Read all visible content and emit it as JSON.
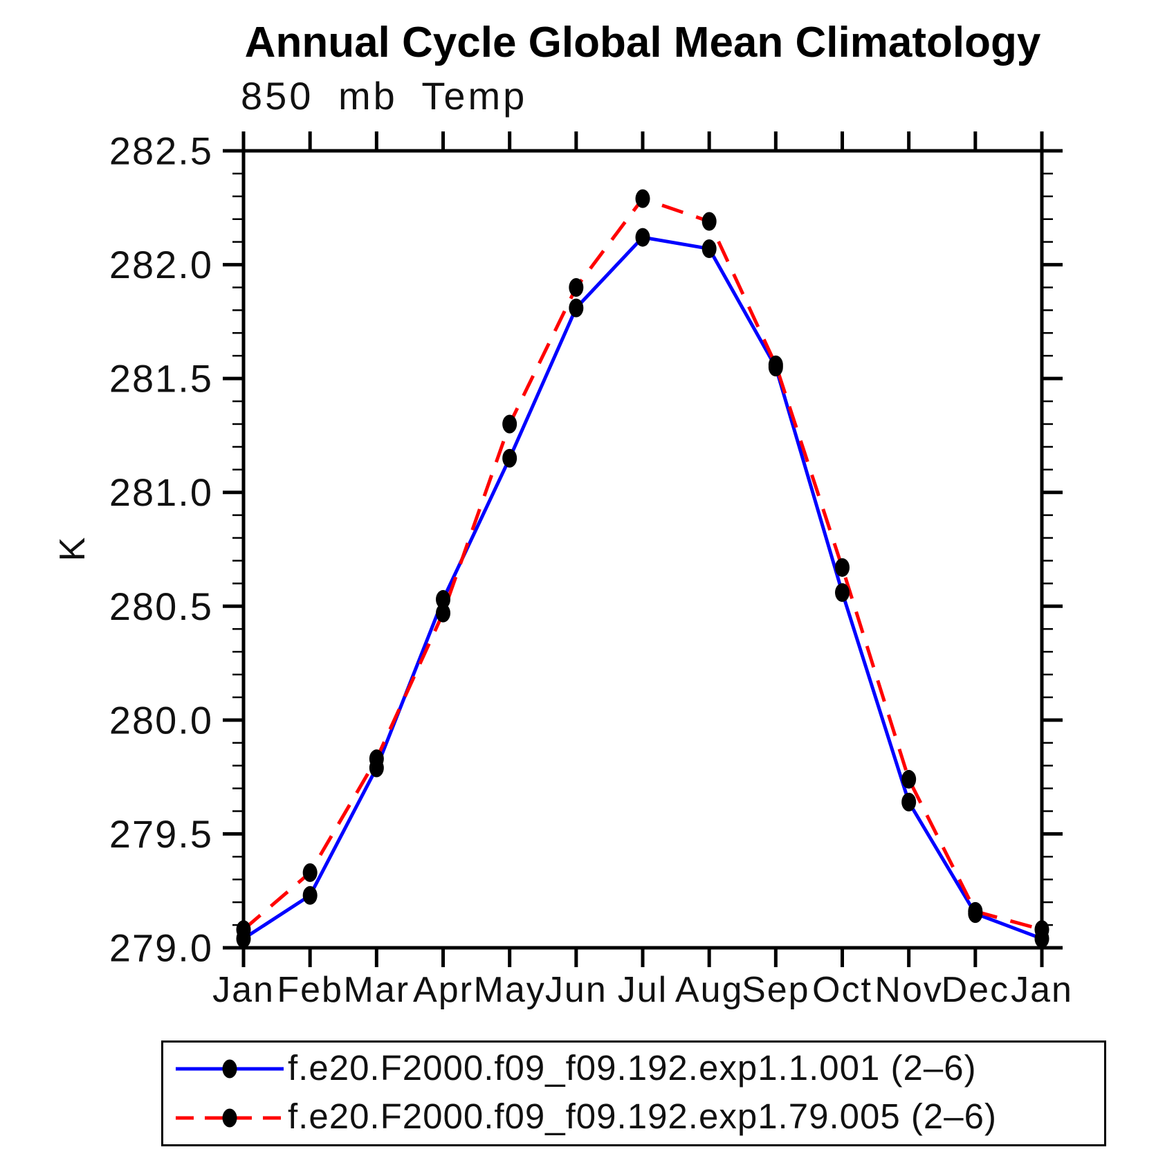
{
  "title": "Annual Cycle Global Mean Climatology",
  "subtitle": "850 mb Temp",
  "y_axis_unit": "K",
  "legend": {
    "items": [
      {
        "label": "f.e20.F2000.f09_f09.192.exp1.1.001 (2–6)",
        "color": "#0000ff",
        "style": "solid"
      },
      {
        "label": "f.e20.F2000.f09_f09.192.exp1.79.005 (2–6)",
        "color": "#ff0000",
        "style": "dashed"
      }
    ]
  },
  "colors": {
    "series1": "#0000ff",
    "series2": "#ff0000",
    "marker": "#000000",
    "axis": "#000000",
    "background": "#ffffff"
  },
  "chart_data": {
    "type": "line",
    "title": "Annual Cycle Global Mean Climatology",
    "subtitle": "850 mb Temp",
    "xlabel": "",
    "ylabel": "K",
    "categories": [
      "Jan",
      "Feb",
      "Mar",
      "Apr",
      "May",
      "Jun",
      "Jul",
      "Aug",
      "Sep",
      "Oct",
      "Nov",
      "Dec",
      "Jan"
    ],
    "ylim": [
      279.0,
      282.5
    ],
    "ytick_major_step": 0.5,
    "ytick_minor_step": 0.1,
    "yticks": [
      282.5,
      282.0,
      281.5,
      281.0,
      280.5,
      280.0,
      279.5,
      279.0
    ],
    "grid": false,
    "legend_position": "bottom",
    "marker": "filled-circle",
    "series": [
      {
        "name": "f.e20.F2000.f09_f09.192.exp1.1.001 (2–6)",
        "color": "#0000ff",
        "line_style": "solid",
        "values": [
          279.04,
          279.23,
          279.79,
          280.53,
          281.15,
          281.81,
          282.12,
          282.07,
          281.55,
          280.56,
          279.64,
          279.15,
          279.04
        ]
      },
      {
        "name": "f.e20.F2000.f09_f09.192.exp1.79.005 (2–6)",
        "color": "#ff0000",
        "line_style": "dashed",
        "values": [
          279.08,
          279.33,
          279.83,
          280.47,
          281.3,
          281.9,
          282.29,
          282.19,
          281.56,
          280.67,
          279.74,
          279.16,
          279.08
        ]
      }
    ]
  }
}
